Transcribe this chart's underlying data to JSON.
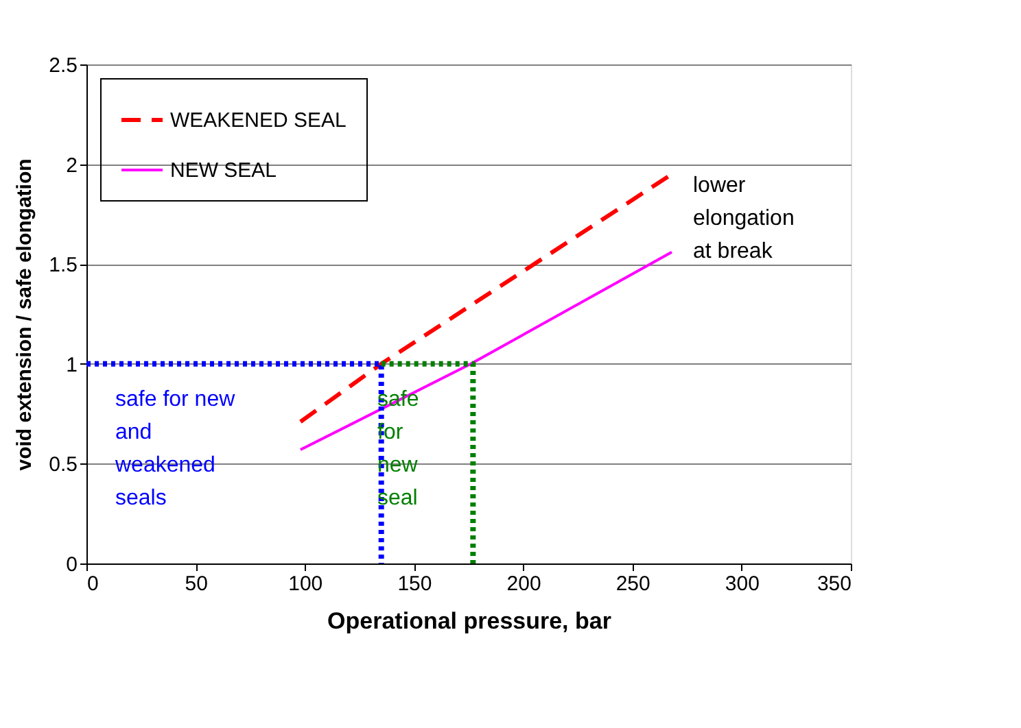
{
  "chart_data": {
    "type": "line",
    "xlabel": "Operational pressure, bar",
    "ylabel": "void extension / safe elongation",
    "xlim": [
      0,
      350
    ],
    "xticks": [
      0,
      50,
      100,
      150,
      200,
      250,
      300,
      350
    ],
    "ylim": [
      0,
      2.5
    ],
    "yticks": [
      0,
      0.5,
      1,
      1.5,
      2,
      2.5
    ],
    "grid": "y",
    "legend": "top left",
    "marker": "none",
    "series": [
      {
        "name": "WEAKENED SEAL",
        "color": "#ff0000",
        "line_style": "dashed",
        "x": [
          98,
          135,
          268
        ],
        "values": [
          0.71,
          1.0,
          1.95
        ]
      },
      {
        "name": "NEW SEAL",
        "color": "#ff00ff",
        "line_style": "solid",
        "x": [
          98,
          176,
          268
        ],
        "values": [
          0.57,
          1.0,
          1.56
        ]
      },
      {
        "color": "#0000ff",
        "line_style": "dotted",
        "x": [
          0,
          135,
          135
        ],
        "values": [
          1,
          1,
          0
        ]
      },
      {
        "color": "#008000",
        "line_style": "dotted",
        "x": [
          135,
          177,
          177
        ],
        "values": [
          1,
          1,
          0
        ]
      }
    ],
    "annotations": [
      "safe for new\nand\nweakened\nseals",
      "safe\nfor\nnew\nseal",
      "lower\nelongation\nat break"
    ]
  }
}
